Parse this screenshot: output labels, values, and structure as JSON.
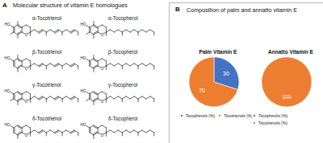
{
  "panel_a": {
    "label": "A",
    "title": "Molecular structure of vitamin E homologues",
    "compounds": [
      [
        "α-Tocotrienol",
        "α-Tocopherol"
      ],
      [
        "β-Tocotrienol",
        "β-Tocopherol"
      ],
      [
        "γ-Tocotrienol",
        "γ-Tocopherol"
      ],
      [
        "δ-Tocotrienol",
        "δ-Tocopherol"
      ]
    ]
  },
  "panel_b": {
    "label": "B",
    "title": "Composition of palm and annatto vitamin E"
  },
  "chart_data": [
    {
      "type": "pie",
      "title": "Palm Vitamin E",
      "categories": [
        "Tocopherols (%)",
        "Tocotrienols (%)"
      ],
      "values": [
        30,
        70
      ],
      "colors": [
        "#4472c4",
        "#ed7d31"
      ],
      "data_labels": true,
      "legend": "bottom"
    },
    {
      "type": "pie",
      "title": "Annatto Vitamin E",
      "categories": [
        "Tocopherols (%)",
        "Tocotrienols (%)"
      ],
      "values": [
        0,
        100
      ],
      "colors": [
        "#4472c4",
        "#ed7d31"
      ],
      "data_labels": true,
      "legend": "bottom"
    }
  ]
}
